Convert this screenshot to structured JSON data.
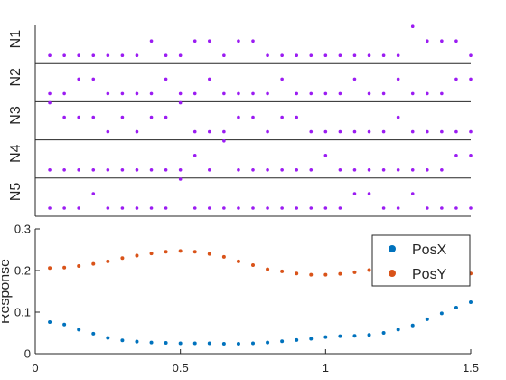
{
  "chart_data": [
    {
      "type": "scatter",
      "title": "",
      "xlim": [
        0,
        1.5
      ],
      "ylim": [
        0,
        2
      ],
      "axes_visible": false,
      "grid": false,
      "x": [
        0.05,
        0.1,
        0.15,
        0.2,
        0.25,
        0.3,
        0.35,
        0.4,
        0.45,
        0.5,
        0.55,
        0.6,
        0.65,
        0.7,
        0.75,
        0.8,
        0.85,
        0.9,
        0.95,
        1.0,
        1.05,
        1.1,
        1.15,
        1.2,
        1.25,
        1.3,
        1.35,
        1.4,
        1.45,
        1.5
      ],
      "rows": [
        {
          "label": "N1",
          "values": [
            0,
            0,
            0,
            0,
            0,
            0,
            0,
            1,
            0,
            0,
            1,
            1,
            0,
            1,
            1,
            0,
            0,
            0,
            0,
            0,
            0,
            0,
            0,
            0,
            0,
            2,
            1,
            1,
            1,
            0
          ]
        },
        {
          "label": "N2",
          "values": [
            0,
            0,
            1,
            1,
            0,
            0,
            0,
            0,
            1,
            0,
            0,
            1,
            0,
            0,
            0,
            0,
            1,
            0,
            0,
            0,
            0,
            1,
            0,
            0,
            1,
            0,
            0,
            0,
            1,
            1
          ]
        },
        {
          "label": "N3",
          "values": [
            2,
            1,
            1,
            1,
            0,
            1,
            0,
            1,
            1,
            2,
            0,
            0,
            0,
            1,
            1,
            0,
            1,
            1,
            0,
            0,
            0,
            0,
            0,
            0,
            1,
            0,
            0,
            0,
            0,
            0
          ]
        },
        {
          "label": "N4",
          "values": [
            0,
            0,
            0,
            0,
            0,
            0,
            0,
            0,
            0,
            0,
            1,
            0,
            2,
            0,
            0,
            0,
            0,
            0,
            0,
            1,
            0,
            0,
            0,
            0,
            0,
            0,
            0,
            0,
            1,
            1
          ]
        },
        {
          "label": "N5",
          "values": [
            0,
            0,
            0,
            1,
            0,
            0,
            0,
            0,
            0,
            2,
            0,
            0,
            0,
            0,
            0,
            0,
            0,
            0,
            0,
            0,
            0,
            1,
            1,
            0,
            0,
            1,
            0,
            0,
            0,
            0
          ]
        }
      ],
      "colors": {
        "markers": "#9b1cf2"
      }
    },
    {
      "type": "scatter",
      "title": "",
      "xlabel": "",
      "ylabel": "Response",
      "xlim": [
        0,
        1.5
      ],
      "ylim": [
        0,
        0.3
      ],
      "xticks": [
        "0",
        "0.5",
        "1",
        "1.5"
      ],
      "yticks": [
        "0",
        "0.1",
        "0.2",
        "0.3"
      ],
      "grid": false,
      "legend": {
        "placement": "top-right"
      },
      "x": [
        0.05,
        0.1,
        0.15,
        0.2,
        0.25,
        0.3,
        0.35,
        0.4,
        0.45,
        0.5,
        0.55,
        0.6,
        0.65,
        0.7,
        0.75,
        0.8,
        0.85,
        0.9,
        0.95,
        1.0,
        1.05,
        1.1,
        1.15,
        1.2,
        1.25,
        1.3,
        1.35,
        1.4,
        1.45,
        1.5
      ],
      "series": [
        {
          "name": "PosX",
          "color": "#0072bd",
          "values": [
            0.076,
            0.07,
            0.058,
            0.048,
            0.038,
            0.032,
            0.029,
            0.027,
            0.026,
            0.025,
            0.025,
            0.025,
            0.024,
            0.024,
            0.025,
            0.027,
            0.03,
            0.033,
            0.036,
            0.04,
            0.042,
            0.043,
            0.045,
            0.05,
            0.058,
            0.068,
            0.083,
            0.097,
            0.111,
            0.124
          ]
        },
        {
          "name": "PosY",
          "color": "#d95319",
          "values": [
            0.206,
            0.207,
            0.211,
            0.216,
            0.222,
            0.23,
            0.236,
            0.241,
            0.245,
            0.247,
            0.245,
            0.24,
            0.233,
            0.222,
            0.213,
            0.203,
            0.198,
            0.193,
            0.19,
            0.19,
            0.192,
            0.196,
            0.201,
            0.204,
            0.204,
            0.201,
            0.198,
            0.195,
            0.193,
            0.193
          ]
        }
      ]
    }
  ]
}
